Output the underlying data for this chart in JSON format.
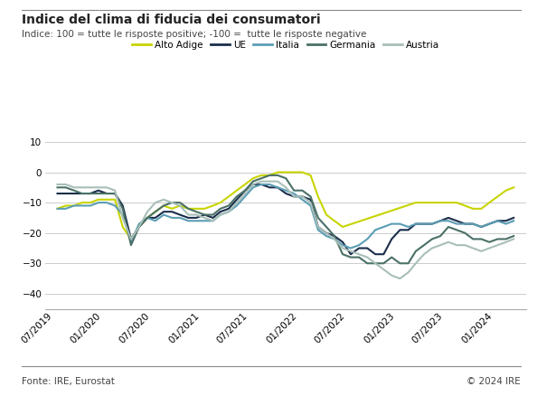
{
  "title": "Indice del clima di fiducia dei consumatori",
  "subtitle": "Indice: 100 = tutte le risposte positive; -100 =  tutte le risposte negative",
  "footer_left": "Fonte: IRE, Eurostat",
  "footer_right": "© 2024 IRE",
  "ylim": [
    -45,
    15
  ],
  "yticks": [
    -40,
    -30,
    -20,
    -10,
    0,
    10
  ],
  "background_color": "#ffffff",
  "series": {
    "Alto Adige": {
      "color": "#c8d400",
      "linewidth": 1.5,
      "data": {
        "2019-07": -12,
        "2019-08": -11,
        "2019-09": -11,
        "2019-10": -10,
        "2019-11": -10,
        "2019-12": -9,
        "2020-01": -9,
        "2020-02": -9,
        "2020-03": -18,
        "2020-04": -22,
        "2020-05": -18,
        "2020-06": -15,
        "2020-07": -13,
        "2020-08": -11,
        "2020-09": -12,
        "2020-10": -11,
        "2020-11": -12,
        "2020-12": -12,
        "2021-01": -12,
        "2021-02": -11,
        "2021-03": -10,
        "2021-04": -8,
        "2021-05": -6,
        "2021-06": -4,
        "2021-07": -2,
        "2021-08": -1,
        "2021-09": -1,
        "2021-10": 0,
        "2021-11": 0,
        "2021-12": 0,
        "2022-01": 0,
        "2022-02": -1,
        "2022-03": -8,
        "2022-04": -14,
        "2022-05": -16,
        "2022-06": -18,
        "2023-03": -10,
        "2023-04": -10,
        "2023-05": -10,
        "2023-06": -10,
        "2023-07": -10,
        "2023-08": -10,
        "2023-09": -11,
        "2023-10": -12,
        "2023-11": -12,
        "2023-12": -10,
        "2024-01": -8,
        "2024-02": -6,
        "2024-03": -5
      }
    },
    "UE": {
      "color": "#1a2d4a",
      "linewidth": 1.5,
      "data": {
        "2019-07": -7,
        "2019-08": -7,
        "2019-09": -7,
        "2019-10": -7,
        "2019-11": -7,
        "2019-12": -6,
        "2020-01": -7,
        "2020-02": -7,
        "2020-03": -11,
        "2020-04": -22,
        "2020-05": -18,
        "2020-06": -15,
        "2020-07": -15,
        "2020-08": -13,
        "2020-09": -13,
        "2020-10": -14,
        "2020-11": -15,
        "2020-12": -15,
        "2021-01": -14,
        "2021-02": -15,
        "2021-03": -13,
        "2021-04": -12,
        "2021-05": -9,
        "2021-06": -6,
        "2021-07": -4,
        "2021-08": -4,
        "2021-09": -5,
        "2021-10": -5,
        "2021-11": -7,
        "2021-12": -8,
        "2022-01": -8,
        "2022-02": -9,
        "2022-03": -18,
        "2022-04": -20,
        "2022-05": -21,
        "2022-06": -23,
        "2022-07": -27,
        "2022-08": -25,
        "2022-09": -25,
        "2022-10": -27,
        "2022-11": -27,
        "2022-12": -22,
        "2023-01": -19,
        "2023-02": -19,
        "2023-03": -17,
        "2023-04": -17,
        "2023-05": -17,
        "2023-06": -16,
        "2023-07": -15,
        "2023-08": -16,
        "2023-09": -17,
        "2023-10": -17,
        "2023-11": -18,
        "2023-12": -17,
        "2024-01": -16,
        "2024-02": -16,
        "2024-03": -15
      }
    },
    "Italia": {
      "color": "#5b9db5",
      "linewidth": 1.5,
      "data": {
        "2019-07": -12,
        "2019-08": -12,
        "2019-09": -11,
        "2019-10": -11,
        "2019-11": -11,
        "2019-12": -10,
        "2020-01": -10,
        "2020-02": -11,
        "2020-03": -14,
        "2020-04": -23,
        "2020-05": -17,
        "2020-06": -15,
        "2020-07": -16,
        "2020-08": -14,
        "2020-09": -15,
        "2020-10": -15,
        "2020-11": -16,
        "2020-12": -16,
        "2021-01": -16,
        "2021-02": -16,
        "2021-03": -14,
        "2021-04": -13,
        "2021-05": -11,
        "2021-06": -8,
        "2021-07": -5,
        "2021-08": -4,
        "2021-09": -4,
        "2021-10": -5,
        "2021-11": -6,
        "2021-12": -7,
        "2022-01": -9,
        "2022-02": -11,
        "2022-03": -19,
        "2022-04": -21,
        "2022-05": -22,
        "2022-06": -24,
        "2022-07": -25,
        "2022-08": -24,
        "2022-09": -22,
        "2022-10": -19,
        "2022-11": -18,
        "2022-12": -17,
        "2023-01": -17,
        "2023-02": -18,
        "2023-03": -17,
        "2023-04": -17,
        "2023-05": -17,
        "2023-06": -16,
        "2023-07": -16,
        "2023-08": -17,
        "2023-09": -17,
        "2023-10": -17,
        "2023-11": -18,
        "2023-12": -17,
        "2024-01": -16,
        "2024-02": -17,
        "2024-03": -16
      }
    },
    "Germania": {
      "color": "#4a7067",
      "linewidth": 1.5,
      "data": {
        "2019-07": -5,
        "2019-08": -5,
        "2019-09": -6,
        "2019-10": -7,
        "2019-11": -7,
        "2019-12": -7,
        "2020-01": -7,
        "2020-02": -7,
        "2020-03": -12,
        "2020-04": -24,
        "2020-05": -18,
        "2020-06": -15,
        "2020-07": -13,
        "2020-08": -11,
        "2020-09": -10,
        "2020-10": -10,
        "2020-11": -12,
        "2020-12": -13,
        "2021-01": -14,
        "2021-02": -14,
        "2021-03": -12,
        "2021-04": -11,
        "2021-05": -8,
        "2021-06": -6,
        "2021-07": -3,
        "2021-08": -2,
        "2021-09": -1,
        "2021-10": -1,
        "2021-11": -2,
        "2021-12": -6,
        "2022-01": -6,
        "2022-02": -8,
        "2022-03": -15,
        "2022-04": -18,
        "2022-05": -21,
        "2022-06": -27,
        "2022-07": -28,
        "2022-08": -28,
        "2022-09": -30,
        "2022-10": -30,
        "2022-11": -30,
        "2022-12": -28,
        "2023-01": -30,
        "2023-02": -30,
        "2023-03": -26,
        "2023-04": -24,
        "2023-05": -22,
        "2023-06": -21,
        "2023-07": -18,
        "2023-08": -19,
        "2023-09": -20,
        "2023-10": -22,
        "2023-11": -22,
        "2023-12": -23,
        "2024-01": -22,
        "2024-02": -22,
        "2024-03": -21
      }
    },
    "Austria": {
      "color": "#a8bfb8",
      "linewidth": 1.5,
      "data": {
        "2019-07": -4,
        "2019-08": -4,
        "2019-09": -5,
        "2019-10": -5,
        "2019-11": -5,
        "2019-12": -5,
        "2020-01": -5,
        "2020-02": -6,
        "2020-03": -15,
        "2020-04": -22,
        "2020-05": -18,
        "2020-06": -13,
        "2020-07": -10,
        "2020-08": -9,
        "2020-09": -10,
        "2020-10": -11,
        "2020-11": -14,
        "2020-12": -14,
        "2021-01": -15,
        "2021-02": -16,
        "2021-03": -14,
        "2021-04": -13,
        "2021-05": -10,
        "2021-06": -7,
        "2021-07": -4,
        "2021-08": -3,
        "2021-09": -3,
        "2021-10": -3,
        "2021-11": -5,
        "2021-12": -8,
        "2022-01": -8,
        "2022-02": -10,
        "2022-03": -18,
        "2022-04": -20,
        "2022-05": -22,
        "2022-06": -25,
        "2022-07": -26,
        "2022-08": -27,
        "2022-09": -28,
        "2022-10": -30,
        "2022-11": -32,
        "2022-12": -34,
        "2023-01": -35,
        "2023-02": -33,
        "2023-03": -30,
        "2023-04": -27,
        "2023-05": -25,
        "2023-06": -24,
        "2023-07": -23,
        "2023-08": -24,
        "2023-09": -24,
        "2023-10": -25,
        "2023-11": -26,
        "2023-12": -25,
        "2024-01": -24,
        "2024-02": -23,
        "2024-03": -22
      }
    }
  },
  "xtick_labels": [
    "07/2019",
    "01/2020",
    "07/2020",
    "01/2021",
    "07/2021",
    "01/2022",
    "07/2022",
    "01/2023",
    "07/2023",
    "01/2024"
  ],
  "xtick_dates": [
    "2019-07-01",
    "2020-01-01",
    "2020-07-01",
    "2021-01-01",
    "2021-07-01",
    "2022-01-01",
    "2022-07-01",
    "2023-01-01",
    "2023-07-01",
    "2024-01-01"
  ],
  "xlim_start": "2019-06-01",
  "xlim_end": "2024-05-01",
  "series_order": [
    "Alto Adige",
    "UE",
    "Italia",
    "Germania",
    "Austria"
  ],
  "top_line_color": "#888888",
  "bottom_line_color": "#888888",
  "grid_color": "#cccccc",
  "spine_color": "#aaaaaa",
  "title_fontsize": 10,
  "subtitle_fontsize": 7.5,
  "tick_fontsize": 7.5,
  "legend_fontsize": 7.5,
  "footer_fontsize": 7.5
}
